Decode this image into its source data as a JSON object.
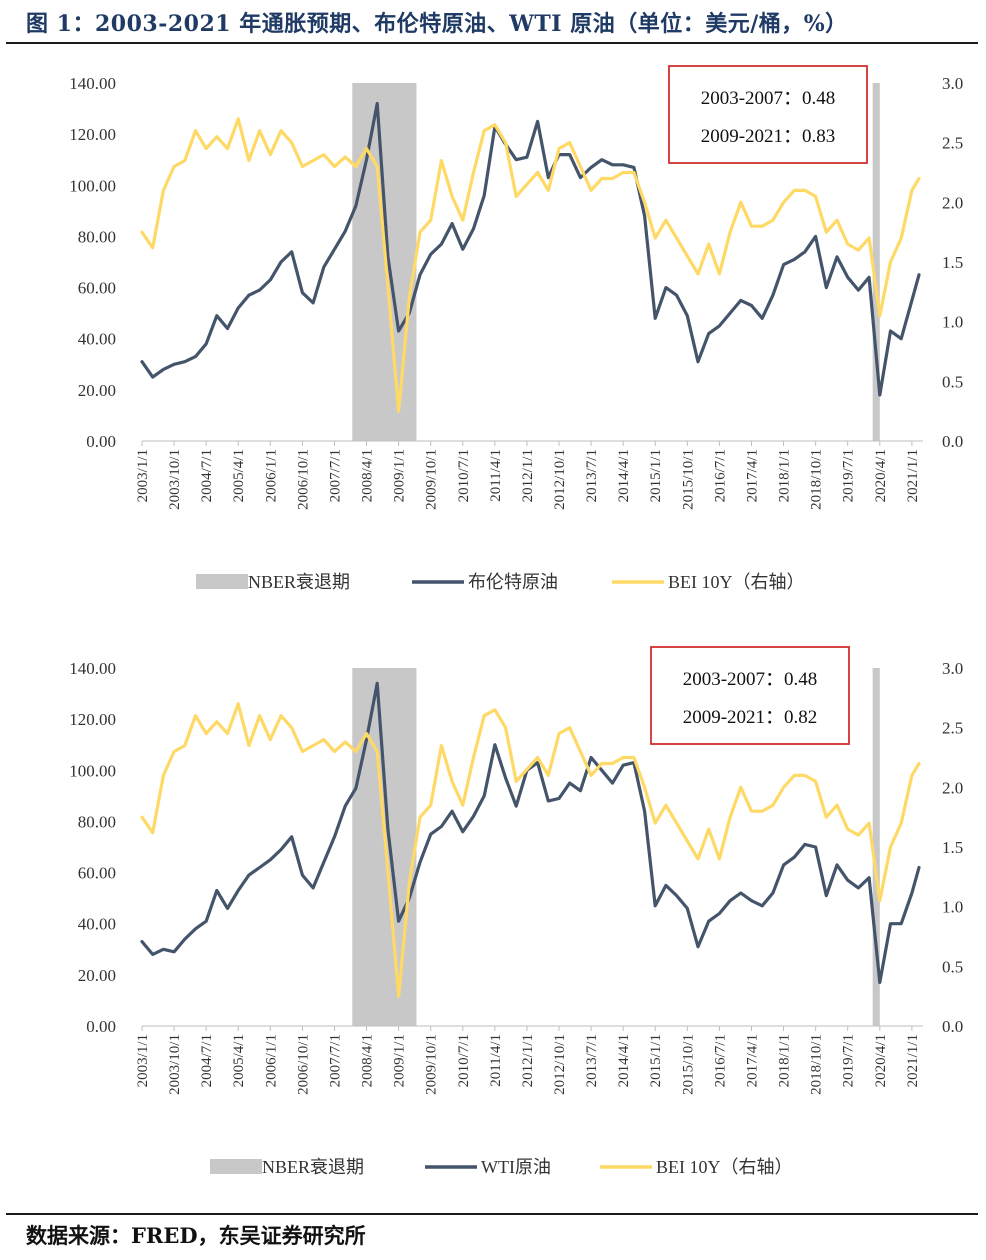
{
  "title": "图 1：2003-2021 年通胀预期、布伦特原油、WTI 原油（单位：美元/桶，%）",
  "source": "数据来源：FRED，东吴证券研究所",
  "colors": {
    "recession": "#c8c8c8",
    "oil": "#44546a",
    "bei": "#ffd966",
    "box": "#d32f2f"
  },
  "chart_data": [
    {
      "type": "line",
      "left_ticks": [
        "0.00",
        "20.00",
        "40.00",
        "60.00",
        "80.00",
        "100.00",
        "120.00",
        "140.00"
      ],
      "right_ticks": [
        "0.0",
        "0.5",
        "1.0",
        "1.5",
        "2.0",
        "2.5",
        "3.0"
      ],
      "ylim_left": [
        0,
        140
      ],
      "ylim_right": [
        0,
        3
      ],
      "x_ticks": [
        "2003/1/1",
        "2003/10/1",
        "2004/7/1",
        "2005/4/1",
        "2006/1/1",
        "2006/10/1",
        "2007/7/1",
        "2008/4/1",
        "2009/1/1",
        "2009/10/1",
        "2010/7/1",
        "2011/4/1",
        "2012/1/1",
        "2012/10/1",
        "2013/7/1",
        "2014/4/1",
        "2015/1/1",
        "2015/10/1",
        "2016/7/1",
        "2017/4/1",
        "2018/1/1",
        "2018/10/1",
        "2019/7/1",
        "2020/4/1",
        "2021/1/1"
      ],
      "recessions": [
        [
          "2007-12",
          "2009-06"
        ],
        [
          "2020-02",
          "2020-04"
        ]
      ],
      "annotations": [
        "2003-2007：0.48",
        "2009-2021：0.83"
      ],
      "legend": [
        "NBER衰退期",
        "布伦特原油",
        "BEI 10Y（右轴）"
      ],
      "series": [
        {
          "name": "布伦特原油",
          "axis": "left",
          "x": [
            "2003-01",
            "2003-04",
            "2003-07",
            "2003-10",
            "2004-01",
            "2004-04",
            "2004-07",
            "2004-10",
            "2005-01",
            "2005-04",
            "2005-07",
            "2005-10",
            "2006-01",
            "2006-04",
            "2006-07",
            "2006-10",
            "2007-01",
            "2007-04",
            "2007-07",
            "2007-10",
            "2008-01",
            "2008-04",
            "2008-07",
            "2008-10",
            "2009-01",
            "2009-04",
            "2009-07",
            "2009-10",
            "2010-01",
            "2010-04",
            "2010-07",
            "2010-10",
            "2011-01",
            "2011-04",
            "2011-07",
            "2011-10",
            "2012-01",
            "2012-04",
            "2012-07",
            "2012-10",
            "2013-01",
            "2013-04",
            "2013-07",
            "2013-10",
            "2014-01",
            "2014-04",
            "2014-07",
            "2014-10",
            "2015-01",
            "2015-04",
            "2015-07",
            "2015-10",
            "2016-01",
            "2016-04",
            "2016-07",
            "2016-10",
            "2017-01",
            "2017-04",
            "2017-07",
            "2017-10",
            "2018-01",
            "2018-04",
            "2018-07",
            "2018-10",
            "2019-01",
            "2019-04",
            "2019-07",
            "2019-10",
            "2020-01",
            "2020-04",
            "2020-07",
            "2020-10",
            "2021-01",
            "2021-03"
          ],
          "values": [
            31,
            25,
            28,
            30,
            31,
            33,
            38,
            49,
            44,
            52,
            57,
            59,
            63,
            70,
            74,
            58,
            54,
            68,
            75,
            82,
            92,
            110,
            132,
            72,
            43,
            50,
            65,
            73,
            77,
            85,
            75,
            83,
            96,
            123,
            116,
            110,
            111,
            125,
            103,
            112,
            112,
            103,
            107,
            110,
            108,
            108,
            107,
            88,
            48,
            60,
            57,
            49,
            31,
            42,
            45,
            50,
            55,
            53,
            48,
            57,
            69,
            71,
            74,
            80,
            60,
            72,
            64,
            59,
            64,
            18,
            43,
            40,
            55,
            65
          ]
        },
        {
          "name": "BEI 10Y（右轴）",
          "axis": "right",
          "x": [
            "2003-01",
            "2003-04",
            "2003-07",
            "2003-10",
            "2004-01",
            "2004-04",
            "2004-07",
            "2004-10",
            "2005-01",
            "2005-04",
            "2005-07",
            "2005-10",
            "2006-01",
            "2006-04",
            "2006-07",
            "2006-10",
            "2007-01",
            "2007-04",
            "2007-07",
            "2007-10",
            "2008-01",
            "2008-04",
            "2008-07",
            "2008-10",
            "2009-01",
            "2009-04",
            "2009-07",
            "2009-10",
            "2010-01",
            "2010-04",
            "2010-07",
            "2010-10",
            "2011-01",
            "2011-04",
            "2011-07",
            "2011-10",
            "2012-01",
            "2012-04",
            "2012-07",
            "2012-10",
            "2013-01",
            "2013-04",
            "2013-07",
            "2013-10",
            "2014-01",
            "2014-04",
            "2014-07",
            "2014-10",
            "2015-01",
            "2015-04",
            "2015-07",
            "2015-10",
            "2016-01",
            "2016-04",
            "2016-07",
            "2016-10",
            "2017-01",
            "2017-04",
            "2017-07",
            "2017-10",
            "2018-01",
            "2018-04",
            "2018-07",
            "2018-10",
            "2019-01",
            "2019-04",
            "2019-07",
            "2019-10",
            "2020-01",
            "2020-04",
            "2020-07",
            "2020-10",
            "2021-01",
            "2021-03"
          ],
          "values": [
            1.75,
            1.62,
            2.1,
            2.3,
            2.35,
            2.6,
            2.45,
            2.55,
            2.45,
            2.7,
            2.35,
            2.6,
            2.4,
            2.6,
            2.5,
            2.3,
            2.35,
            2.4,
            2.3,
            2.38,
            2.3,
            2.45,
            2.3,
            1.3,
            0.25,
            1.2,
            1.75,
            1.85,
            2.35,
            2.05,
            1.85,
            2.25,
            2.6,
            2.65,
            2.5,
            2.05,
            2.15,
            2.25,
            2.1,
            2.45,
            2.5,
            2.3,
            2.1,
            2.2,
            2.2,
            2.25,
            2.25,
            2.0,
            1.7,
            1.85,
            1.7,
            1.55,
            1.4,
            1.65,
            1.4,
            1.75,
            2.0,
            1.8,
            1.8,
            1.85,
            2.0,
            2.1,
            2.1,
            2.05,
            1.75,
            1.85,
            1.65,
            1.6,
            1.7,
            1.05,
            1.5,
            1.7,
            2.1,
            2.2
          ]
        }
      ]
    },
    {
      "type": "line",
      "left_ticks": [
        "0.00",
        "20.00",
        "40.00",
        "60.00",
        "80.00",
        "100.00",
        "120.00",
        "140.00"
      ],
      "right_ticks": [
        "0.0",
        "0.5",
        "1.0",
        "1.5",
        "2.0",
        "2.5",
        "3.0"
      ],
      "ylim_left": [
        0,
        140
      ],
      "ylim_right": [
        0,
        3
      ],
      "x_ticks": [
        "2003/1/1",
        "2003/10/1",
        "2004/7/1",
        "2005/4/1",
        "2006/1/1",
        "2006/10/1",
        "2007/7/1",
        "2008/4/1",
        "2009/1/1",
        "2009/10/1",
        "2010/7/1",
        "2011/4/1",
        "2012/1/1",
        "2012/10/1",
        "2013/7/1",
        "2014/4/1",
        "2015/1/1",
        "2015/10/1",
        "2016/7/1",
        "2017/4/1",
        "2018/1/1",
        "2018/10/1",
        "2019/7/1",
        "2020/4/1",
        "2021/1/1"
      ],
      "recessions": [
        [
          "2007-12",
          "2009-06"
        ],
        [
          "2020-02",
          "2020-04"
        ]
      ],
      "annotations": [
        "2003-2007：0.48",
        "2009-2021：0.82"
      ],
      "legend": [
        "NBER衰退期",
        "WTI原油",
        "BEI 10Y（右轴）"
      ],
      "series": [
        {
          "name": "WTI原油",
          "axis": "left",
          "x": [
            "2003-01",
            "2003-04",
            "2003-07",
            "2003-10",
            "2004-01",
            "2004-04",
            "2004-07",
            "2004-10",
            "2005-01",
            "2005-04",
            "2005-07",
            "2005-10",
            "2006-01",
            "2006-04",
            "2006-07",
            "2006-10",
            "2007-01",
            "2007-04",
            "2007-07",
            "2007-10",
            "2008-01",
            "2008-04",
            "2008-07",
            "2008-10",
            "2009-01",
            "2009-04",
            "2009-07",
            "2009-10",
            "2010-01",
            "2010-04",
            "2010-07",
            "2010-10",
            "2011-01",
            "2011-04",
            "2011-07",
            "2011-10",
            "2012-01",
            "2012-04",
            "2012-07",
            "2012-10",
            "2013-01",
            "2013-04",
            "2013-07",
            "2013-10",
            "2014-01",
            "2014-04",
            "2014-07",
            "2014-10",
            "2015-01",
            "2015-04",
            "2015-07",
            "2015-10",
            "2016-01",
            "2016-04",
            "2016-07",
            "2016-10",
            "2017-01",
            "2017-04",
            "2017-07",
            "2017-10",
            "2018-01",
            "2018-04",
            "2018-07",
            "2018-10",
            "2019-01",
            "2019-04",
            "2019-07",
            "2019-10",
            "2020-01",
            "2020-04",
            "2020-07",
            "2020-10",
            "2021-01",
            "2021-03"
          ],
          "values": [
            33,
            28,
            30,
            29,
            34,
            38,
            41,
            53,
            46,
            53,
            59,
            62,
            65,
            69,
            74,
            59,
            54,
            64,
            74,
            86,
            93,
            112,
            134,
            77,
            41,
            50,
            64,
            75,
            78,
            84,
            76,
            82,
            90,
            110,
            97,
            86,
            100,
            103,
            88,
            89,
            95,
            92,
            105,
            100,
            95,
            102,
            103,
            84,
            47,
            55,
            51,
            46,
            31,
            41,
            44,
            49,
            52,
            49,
            47,
            52,
            63,
            66,
            71,
            70,
            51,
            63,
            57,
            54,
            58,
            17,
            40,
            40,
            52,
            62
          ]
        },
        {
          "name": "BEI 10Y（右轴）",
          "axis": "right",
          "x": [
            "2003-01",
            "2003-04",
            "2003-07",
            "2003-10",
            "2004-01",
            "2004-04",
            "2004-07",
            "2004-10",
            "2005-01",
            "2005-04",
            "2005-07",
            "2005-10",
            "2006-01",
            "2006-04",
            "2006-07",
            "2006-10",
            "2007-01",
            "2007-04",
            "2007-07",
            "2007-10",
            "2008-01",
            "2008-04",
            "2008-07",
            "2008-10",
            "2009-01",
            "2009-04",
            "2009-07",
            "2009-10",
            "2010-01",
            "2010-04",
            "2010-07",
            "2010-10",
            "2011-01",
            "2011-04",
            "2011-07",
            "2011-10",
            "2012-01",
            "2012-04",
            "2012-07",
            "2012-10",
            "2013-01",
            "2013-04",
            "2013-07",
            "2013-10",
            "2014-01",
            "2014-04",
            "2014-07",
            "2014-10",
            "2015-01",
            "2015-04",
            "2015-07",
            "2015-10",
            "2016-01",
            "2016-04",
            "2016-07",
            "2016-10",
            "2017-01",
            "2017-04",
            "2017-07",
            "2017-10",
            "2018-01",
            "2018-04",
            "2018-07",
            "2018-10",
            "2019-01",
            "2019-04",
            "2019-07",
            "2019-10",
            "2020-01",
            "2020-04",
            "2020-07",
            "2020-10",
            "2021-01",
            "2021-03"
          ],
          "values": [
            1.75,
            1.62,
            2.1,
            2.3,
            2.35,
            2.6,
            2.45,
            2.55,
            2.45,
            2.7,
            2.35,
            2.6,
            2.4,
            2.6,
            2.5,
            2.3,
            2.35,
            2.4,
            2.3,
            2.38,
            2.3,
            2.45,
            2.3,
            1.3,
            0.25,
            1.2,
            1.75,
            1.85,
            2.35,
            2.05,
            1.85,
            2.25,
            2.6,
            2.65,
            2.5,
            2.05,
            2.15,
            2.25,
            2.1,
            2.45,
            2.5,
            2.3,
            2.1,
            2.2,
            2.2,
            2.25,
            2.25,
            2.0,
            1.7,
            1.85,
            1.7,
            1.55,
            1.4,
            1.65,
            1.4,
            1.75,
            2.0,
            1.8,
            1.8,
            1.85,
            2.0,
            2.1,
            2.1,
            2.05,
            1.75,
            1.85,
            1.65,
            1.6,
            1.7,
            1.05,
            1.5,
            1.7,
            2.1,
            2.2
          ]
        }
      ]
    }
  ]
}
